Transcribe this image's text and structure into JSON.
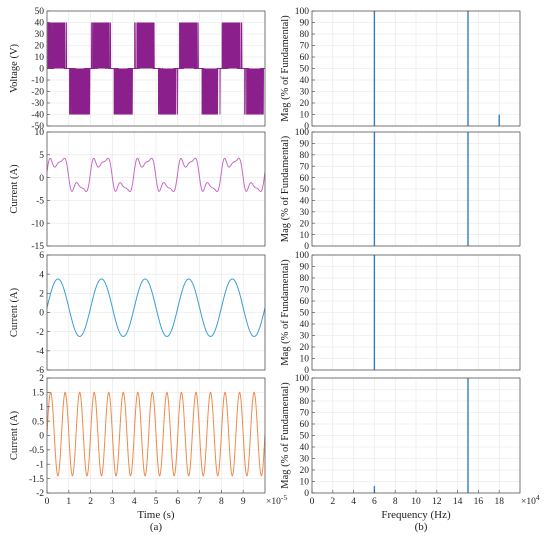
{
  "figure": {
    "caption_a": "(a)",
    "caption_b": "(b)"
  },
  "chart_data": [
    {
      "id": "voltage",
      "panel": "a",
      "type": "line",
      "title": "",
      "ylabel": "Voltage (V)",
      "xlabel": "",
      "xlim": [
        0,
        10
      ],
      "ylim": [
        -50,
        50
      ],
      "yticks": [
        -50,
        -40,
        -30,
        -20,
        -10,
        0,
        10,
        20,
        30,
        40,
        50
      ],
      "xticks": [],
      "color": "#8b1f8b",
      "pwm_levels": [
        40,
        0,
        -40
      ],
      "series": [
        {
          "waveform": "pwm-bipolar",
          "amplitude": 40
        }
      ],
      "grid": true
    },
    {
      "id": "current1",
      "panel": "a",
      "type": "line",
      "title": "",
      "ylabel": "Current (A)",
      "xlabel": "",
      "xlim": [
        0,
        10
      ],
      "ylim": [
        -15,
        10
      ],
      "yticks": [
        -15,
        -10,
        -5,
        0,
        5,
        10
      ],
      "xticks": [],
      "color": "#c76bc9",
      "series": [
        {
          "waveform": "distorted-sine",
          "fundamental_cycles": 5,
          "amplitude": 5.5,
          "offset": 0.6
        }
      ],
      "grid": true
    },
    {
      "id": "current2",
      "panel": "a",
      "type": "line",
      "title": "",
      "ylabel": "Current (A)",
      "xlabel": "",
      "xlim": [
        0,
        10
      ],
      "ylim": [
        -6,
        6
      ],
      "yticks": [
        -6,
        -4,
        -2,
        0,
        2,
        4,
        6
      ],
      "xticks": [],
      "color": "#3a9fd6",
      "series": [
        {
          "waveform": "sine",
          "cycles": 5,
          "amplitude": 3.0,
          "offset": 0.5
        }
      ],
      "grid": true
    },
    {
      "id": "current3",
      "panel": "a",
      "type": "line",
      "title": "",
      "ylabel": "Current (A)",
      "xlabel": "Time (s)",
      "xlim": [
        0,
        10
      ],
      "ylim": [
        -2,
        2
      ],
      "yticks": [
        -2,
        -1.5,
        -1,
        -0.5,
        0,
        0.5,
        1,
        1.5,
        2
      ],
      "xticks": [
        0,
        1,
        2,
        3,
        4,
        5,
        6,
        7,
        8,
        9
      ],
      "xticks_exponent": "×10",
      "xticks_exponent_power": "-5",
      "color": "#f08a4b",
      "series": [
        {
          "waveform": "sine",
          "cycles": 15,
          "amplitude": 1.45,
          "offset": 0.05
        }
      ],
      "grid": true
    },
    {
      "id": "spectrum1",
      "panel": "b",
      "type": "bar",
      "title": "",
      "ylabel": "Mag (% of Fundamental)",
      "xlabel": "",
      "xlim": [
        0,
        20
      ],
      "ylim": [
        0,
        100
      ],
      "yticks": [
        0,
        10,
        20,
        30,
        40,
        50,
        60,
        70,
        80,
        90,
        100
      ],
      "xticks": [],
      "color": "#2d7fc6",
      "bars": [
        {
          "x": 6,
          "value": 100
        },
        {
          "x": 15,
          "value": 100
        },
        {
          "x": 18,
          "value": 10
        }
      ],
      "grid": true
    },
    {
      "id": "spectrum2",
      "panel": "b",
      "type": "bar",
      "title": "",
      "ylabel": "Mag (% of Fundamental)",
      "xlabel": "",
      "xlim": [
        0,
        20
      ],
      "ylim": [
        0,
        100
      ],
      "yticks": [
        0,
        10,
        20,
        30,
        40,
        50,
        60,
        70,
        80,
        90,
        100
      ],
      "xticks": [],
      "color": "#2d7fc6",
      "bars": [
        {
          "x": 6,
          "value": 100
        },
        {
          "x": 15,
          "value": 100
        }
      ],
      "grid": true
    },
    {
      "id": "spectrum3",
      "panel": "b",
      "type": "bar",
      "title": "",
      "ylabel": "Mag (% of Fundamental)",
      "xlabel": "",
      "xlim": [
        0,
        20
      ],
      "ylim": [
        0,
        100
      ],
      "yticks": [
        0,
        10,
        20,
        30,
        40,
        50,
        60,
        70,
        80,
        90,
        100
      ],
      "xticks": [],
      "color": "#2d7fc6",
      "bars": [
        {
          "x": 6,
          "value": 100
        }
      ],
      "grid": true
    },
    {
      "id": "spectrum4",
      "panel": "b",
      "type": "bar",
      "title": "",
      "ylabel": "Mag (% of Fundamental)",
      "xlabel": "Frequency (Hz)",
      "xlim": [
        0,
        20
      ],
      "ylim": [
        0,
        100
      ],
      "yticks": [
        0,
        10,
        20,
        30,
        40,
        50,
        60,
        70,
        80,
        90,
        100
      ],
      "xticks": [
        0,
        2,
        4,
        6,
        8,
        10,
        12,
        14,
        16,
        18
      ],
      "xticks_exponent": "×10",
      "xticks_exponent_power": "4",
      "color": "#2d7fc6",
      "bars": [
        {
          "x": 6,
          "value": 6
        },
        {
          "x": 15,
          "value": 100
        }
      ],
      "grid": true
    }
  ]
}
